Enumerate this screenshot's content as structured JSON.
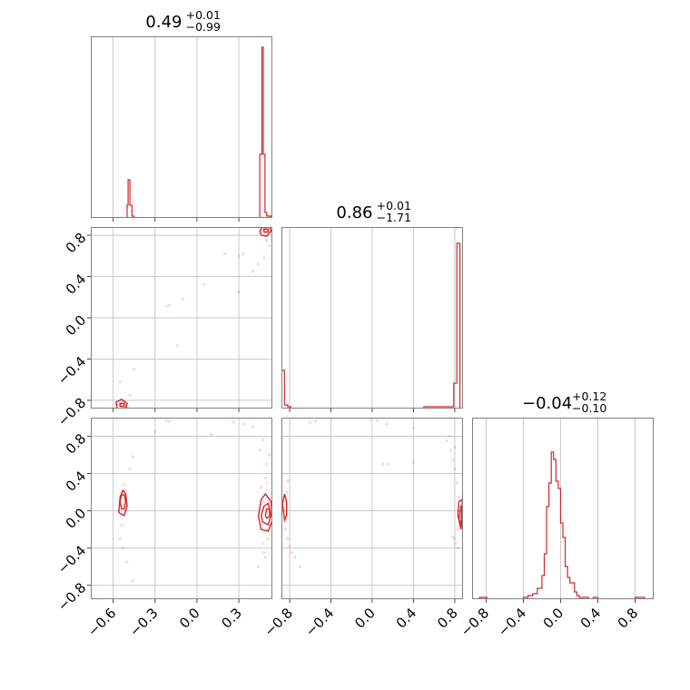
{
  "chart_data": {
    "type": "corner",
    "color": "#d62728",
    "grid": true,
    "params": [
      {
        "range": [
          -0.76,
          0.54
        ],
        "ticks": [
          -0.6,
          -0.3,
          0.0,
          0.3
        ],
        "tick_labels": [
          "−0.6",
          "−0.3",
          "0.0",
          "0.3"
        ]
      },
      {
        "range": [
          -0.88,
          0.88
        ],
        "ticks": [
          -0.8,
          -0.4,
          0.0,
          0.4,
          0.8
        ],
        "tick_labels": [
          "−0.8",
          "−0.4",
          "0.0",
          "0.4",
          "0.8"
        ]
      },
      {
        "range": [
          -0.95,
          1.0
        ],
        "ticks": [
          -0.8,
          -0.4,
          0.0,
          0.4,
          0.8
        ],
        "tick_labels": [
          "−0.8",
          "−0.4",
          "0.0",
          "0.4",
          "0.8"
        ]
      }
    ],
    "titles": [
      {
        "value": "0.49",
        "sup": "+0.01",
        "sub": "−0.99"
      },
      {
        "value": "0.86",
        "sup": "+0.01",
        "sub": "−1.71"
      },
      {
        "value": "−0.04",
        "sup": "+0.12",
        "sub": "−0.10"
      }
    ],
    "histograms": [
      {
        "bin_edges": [
          -0.76,
          -0.5,
          -0.493,
          -0.48,
          -0.465,
          -0.45,
          0.45,
          0.465,
          0.475,
          0.487,
          0.5,
          0.53,
          0.54
        ],
        "counts": [
          0.0,
          0.07,
          0.21,
          0.07,
          0.01,
          0.0,
          0.35,
          0.94,
          0.35,
          0.03,
          0.01,
          0.0
        ]
      },
      {
        "bin_edges": [
          -0.88,
          -0.85,
          -0.82,
          -0.79,
          -0.5,
          -0.2,
          0.2,
          0.5,
          0.79,
          0.82,
          0.85,
          0.88
        ],
        "counts": [
          0.21,
          0.02,
          0.01,
          0.0,
          0.0,
          0.0,
          0.0,
          0.01,
          0.14,
          0.91,
          0.0
        ]
      },
      {
        "bin_edges": [
          -0.95,
          -0.87,
          -0.79,
          -0.7,
          -0.6,
          -0.5,
          -0.4,
          -0.35,
          -0.3,
          -0.25,
          -0.2,
          -0.175,
          -0.15,
          -0.125,
          -0.1,
          -0.075,
          -0.05,
          -0.025,
          0.0,
          0.025,
          0.05,
          0.075,
          0.1,
          0.125,
          0.15,
          0.175,
          0.2,
          0.25,
          0.3,
          0.35,
          0.4,
          0.5,
          0.6,
          0.7,
          0.8,
          0.9,
          1.0
        ],
        "counts": [
          0.0,
          0.01,
          0.0,
          0.0,
          0.0,
          0.0,
          0.01,
          0.02,
          0.03,
          0.06,
          0.13,
          0.25,
          0.51,
          0.64,
          0.81,
          0.77,
          0.65,
          0.61,
          0.42,
          0.34,
          0.18,
          0.12,
          0.09,
          0.09,
          0.04,
          0.02,
          0.01,
          0.01,
          0.0,
          0.01,
          0.0,
          0.0,
          0.0,
          0.0,
          0.01,
          0.0
        ]
      }
    ],
    "hist_ymax": 1.0,
    "scatter": [
      {
        "row": 1,
        "col": 0,
        "points": [
          [
            0.48,
            0.86
          ],
          [
            0.5,
            0.84
          ],
          [
            0.49,
            0.87
          ],
          [
            0.51,
            0.85
          ],
          [
            0.47,
            0.83
          ],
          [
            0.5,
            0.88
          ],
          [
            -0.53,
            -0.86
          ],
          [
            -0.52,
            -0.84
          ],
          [
            -0.54,
            -0.85
          ],
          [
            -0.51,
            -0.87
          ],
          [
            -0.55,
            -0.82
          ],
          [
            -0.53,
            -0.8
          ],
          [
            -0.5,
            -0.86
          ],
          [
            -0.56,
            -0.84
          ],
          [
            -0.48,
            -0.75
          ],
          [
            -0.45,
            -0.5
          ],
          [
            0.2,
            0.62
          ],
          [
            0.33,
            0.62
          ],
          [
            0.3,
            0.6
          ],
          [
            0.44,
            0.52
          ],
          [
            0.5,
            0.75
          ],
          [
            0.52,
            0.7
          ],
          [
            0.05,
            0.32
          ],
          [
            -0.1,
            0.18
          ],
          [
            -0.2,
            0.12
          ],
          [
            -0.22,
            0.11
          ],
          [
            -0.14,
            -0.27
          ],
          [
            0.4,
            0.45
          ],
          [
            0.48,
            0.58
          ],
          [
            0.3,
            0.25
          ],
          [
            -0.55,
            -0.62
          ]
        ],
        "contours": [
          [
            [
              0.46,
              0.8
            ],
            [
              0.5,
              0.79
            ],
            [
              0.53,
              0.84
            ],
            [
              0.52,
              0.89
            ],
            [
              0.47,
              0.88
            ],
            [
              0.45,
              0.84
            ],
            [
              0.46,
              0.8
            ]
          ],
          [
            [
              0.48,
              0.83
            ],
            [
              0.51,
              0.83
            ],
            [
              0.51,
              0.86
            ],
            [
              0.48,
              0.86
            ],
            [
              0.48,
              0.83
            ]
          ],
          [
            [
              -0.57,
              -0.88
            ],
            [
              -0.51,
              -0.88
            ],
            [
              -0.5,
              -0.83
            ],
            [
              -0.54,
              -0.79
            ],
            [
              -0.58,
              -0.82
            ],
            [
              -0.57,
              -0.88
            ]
          ],
          [
            [
              -0.55,
              -0.86
            ],
            [
              -0.52,
              -0.86
            ],
            [
              -0.52,
              -0.83
            ],
            [
              -0.55,
              -0.83
            ],
            [
              -0.55,
              -0.86
            ]
          ]
        ]
      },
      {
        "row": 2,
        "col": 0,
        "points": [
          [
            -0.53,
            0.05
          ],
          [
            -0.52,
            0.12
          ],
          [
            -0.54,
            -0.05
          ],
          [
            -0.53,
            0.2
          ],
          [
            -0.52,
            0.28
          ],
          [
            -0.54,
            -0.15
          ],
          [
            -0.55,
            -0.3
          ],
          [
            -0.53,
            -0.4
          ],
          [
            -0.51,
            0.22
          ],
          [
            -0.56,
            0.0
          ],
          [
            -0.5,
            -0.55
          ],
          [
            -0.46,
            -0.75
          ],
          [
            -0.46,
            0.58
          ],
          [
            -0.48,
            0.45
          ],
          [
            0.48,
            0.1
          ],
          [
            0.5,
            -0.2
          ],
          [
            0.49,
            0.35
          ],
          [
            0.47,
            -0.35
          ],
          [
            0.5,
            0.5
          ],
          [
            0.48,
            -0.45
          ],
          [
            0.46,
            0.25
          ],
          [
            0.51,
            -0.3
          ],
          [
            0.5,
            0.3
          ],
          [
            0.49,
            -0.5
          ],
          [
            0.45,
            0.65
          ],
          [
            0.44,
            -0.6
          ],
          [
            0.34,
            0.93
          ],
          [
            0.26,
            0.95
          ],
          [
            0.4,
            0.9
          ],
          [
            -0.2,
            0.96
          ],
          [
            -0.22,
            0.97
          ],
          [
            0.1,
            0.82
          ],
          [
            -0.3,
            0.85
          ],
          [
            0.52,
            0.6
          ],
          [
            0.47,
            0.76
          ]
        ],
        "contours": [
          [
            [
              -0.55,
              0.1
            ],
            [
              -0.54,
              0.02
            ],
            [
              -0.52,
              0.02
            ],
            [
              -0.51,
              0.1
            ],
            [
              -0.52,
              0.17
            ],
            [
              -0.54,
              0.17
            ],
            [
              -0.55,
              0.1
            ]
          ],
          [
            [
              -0.56,
              -0.02
            ],
            [
              -0.55,
              0.15
            ],
            [
              -0.53,
              0.22
            ],
            [
              -0.51,
              0.18
            ],
            [
              -0.5,
              0.05
            ],
            [
              -0.52,
              -0.05
            ],
            [
              -0.56,
              -0.02
            ]
          ],
          [
            [
              0.46,
              -0.05
            ],
            [
              0.48,
              0.05
            ],
            [
              0.51,
              0.08
            ],
            [
              0.53,
              -0.05
            ],
            [
              0.51,
              -0.15
            ],
            [
              0.47,
              -0.12
            ],
            [
              0.46,
              -0.05
            ]
          ],
          [
            [
              0.44,
              -0.06
            ],
            [
              0.46,
              0.12
            ],
            [
              0.49,
              0.18
            ],
            [
              0.53,
              0.1
            ],
            [
              0.54,
              -0.1
            ],
            [
              0.51,
              -0.22
            ],
            [
              0.46,
              -0.2
            ],
            [
              0.44,
              -0.06
            ]
          ],
          [
            [
              0.49,
              -0.05
            ],
            [
              0.5,
              0.02
            ],
            [
              0.52,
              0.02
            ],
            [
              0.52,
              -0.06
            ],
            [
              0.5,
              -0.08
            ],
            [
              0.49,
              -0.05
            ]
          ]
        ]
      },
      {
        "row": 2,
        "col": 1,
        "points": [
          [
            -0.85,
            0.1
          ],
          [
            -0.84,
            -0.1
          ],
          [
            -0.83,
            0.2
          ],
          [
            -0.84,
            -0.2
          ],
          [
            -0.82,
            -0.3
          ],
          [
            -0.8,
            -0.38
          ],
          [
            -0.78,
            -0.45
          ],
          [
            -0.75,
            -0.5
          ],
          [
            -0.7,
            -0.6
          ],
          [
            -0.86,
            0.0
          ],
          [
            0.85,
            0.0
          ],
          [
            0.84,
            0.15
          ],
          [
            0.83,
            -0.2
          ],
          [
            0.82,
            0.3
          ],
          [
            0.81,
            -0.35
          ],
          [
            0.8,
            0.45
          ],
          [
            0.78,
            0.55
          ],
          [
            0.76,
            0.65
          ],
          [
            0.72,
            0.75
          ],
          [
            0.86,
            -0.1
          ],
          [
            0.83,
            -0.4
          ],
          [
            0.8,
            -0.3
          ],
          [
            -0.6,
            0.95
          ],
          [
            -0.55,
            0.96
          ],
          [
            0.05,
            0.97
          ],
          [
            -0.02,
            0.98
          ],
          [
            0.14,
            0.93
          ],
          [
            0.4,
            0.89
          ],
          [
            0.4,
            0.52
          ],
          [
            0.1,
            0.5
          ],
          [
            0.15,
            0.5
          ],
          [
            0.78,
            -0.28
          ],
          [
            0.75,
            0.8
          ],
          [
            0.8,
            0.68
          ],
          [
            -0.82,
            0.32
          ]
        ],
        "contours": [
          [
            [
              -0.87,
              0.08
            ],
            [
              -0.85,
              0.18
            ],
            [
              -0.83,
              0.1
            ],
            [
              -0.83,
              -0.05
            ],
            [
              -0.85,
              -0.1
            ],
            [
              -0.87,
              0.08
            ]
          ],
          [
            [
              0.83,
              -0.05
            ],
            [
              0.84,
              0.1
            ],
            [
              0.87,
              0.12
            ],
            [
              0.88,
              -0.05
            ],
            [
              0.86,
              -0.2
            ],
            [
              0.83,
              -0.05
            ]
          ],
          [
            [
              0.84,
              -0.1
            ],
            [
              0.86,
              0.05
            ],
            [
              0.87,
              0.03
            ],
            [
              0.86,
              -0.14
            ],
            [
              0.84,
              -0.1
            ]
          ]
        ]
      }
    ]
  }
}
